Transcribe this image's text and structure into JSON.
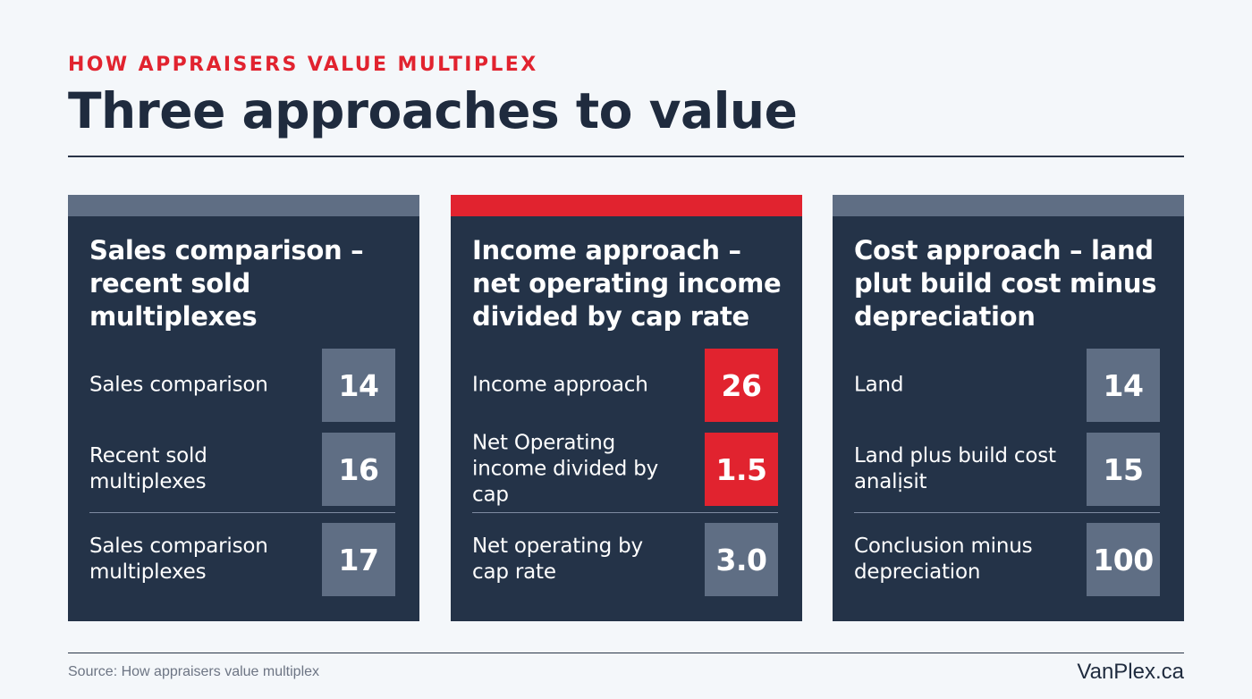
{
  "header": {
    "eyebrow": "HOW APPRAISERS VALUE MULTIPLEX",
    "title": "Three approaches to value"
  },
  "colors": {
    "accent": "#e1232f",
    "card_bg": "#243348",
    "value_box": "#5f6e84",
    "page_bg": "#f4f7fa",
    "ink": "#1f2b3e"
  },
  "cards": [
    {
      "title": "Sales comparison – recent sold multiplexes",
      "rows": [
        {
          "label": "Sales comparison",
          "value": "14"
        },
        {
          "label": "Recent sold multiplexes",
          "value": "16"
        },
        {
          "label": "Sales comparison multiplexes",
          "value": "17"
        }
      ]
    },
    {
      "title": "Income approach – net operating income divided by cap rate",
      "rows": [
        {
          "label": "Income approach",
          "value": "26"
        },
        {
          "label": "Net Operating income divided by cap",
          "value": "1.5"
        },
        {
          "label": "Net operating by cap rate",
          "value": "3.0"
        }
      ]
    },
    {
      "title": "Cost approach – land plut build cost minus depreciation",
      "rows": [
        {
          "label": "Land",
          "value": "14"
        },
        {
          "label": "Land plus build cost analịsit",
          "value": "15"
        },
        {
          "label": "Conclusion minus depreciation",
          "value": "100"
        }
      ]
    }
  ],
  "footer": {
    "source": "Source: How appraisers value multiplex",
    "brand": "VanPlex.ca"
  }
}
